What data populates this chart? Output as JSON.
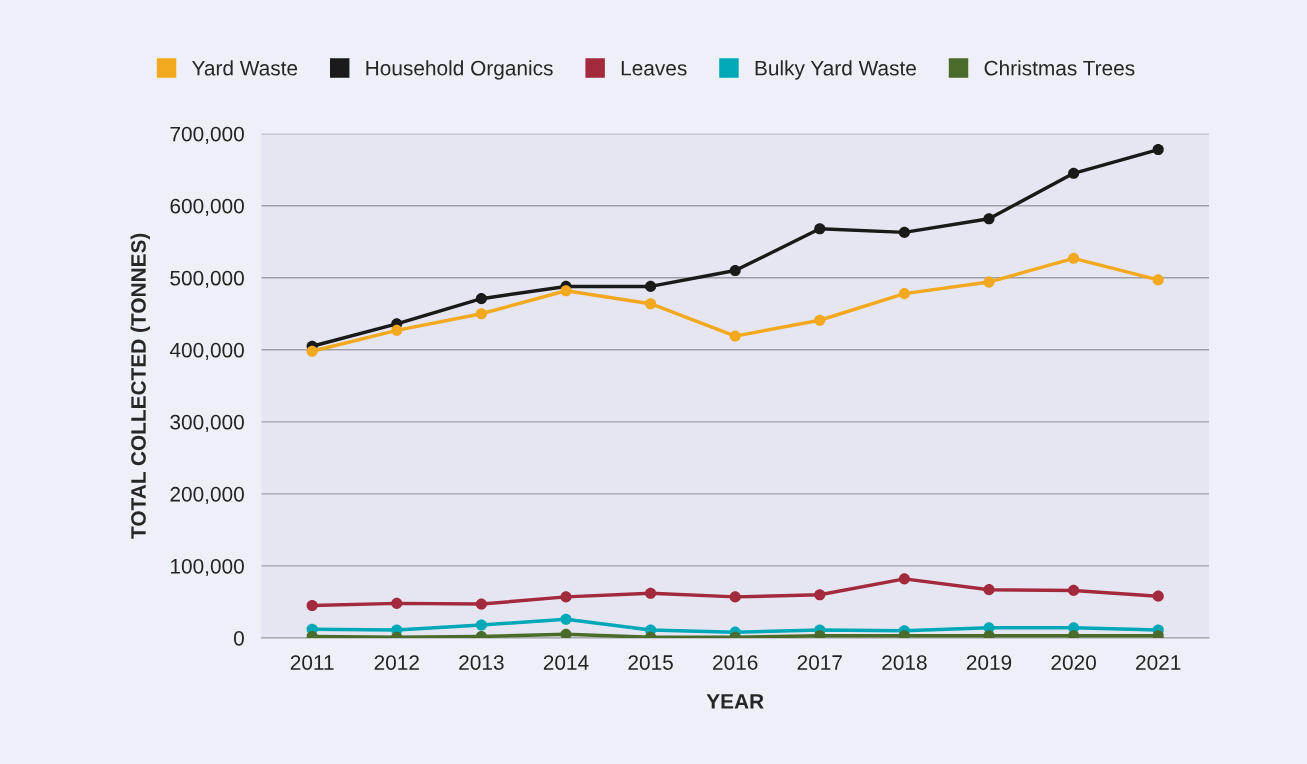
{
  "chart_data": {
    "type": "line",
    "xlabel": "YEAR",
    "ylabel": "TOTAL COLLECTED (TONNES)",
    "categories": [
      "2011",
      "2012",
      "2013",
      "2014",
      "2015",
      "2016",
      "2017",
      "2018",
      "2019",
      "2020",
      "2021"
    ],
    "series": [
      {
        "name": "Yard Waste",
        "color": "#f2a91f",
        "values": [
          398000,
          427000,
          450000,
          482000,
          464000,
          419000,
          441000,
          478000,
          494000,
          527000,
          497000
        ]
      },
      {
        "name": "Household Organics",
        "color": "#1a1a1a",
        "values": [
          405000,
          436000,
          471000,
          488000,
          488000,
          510000,
          568000,
          563000,
          582000,
          645000,
          678000
        ]
      },
      {
        "name": "Leaves",
        "color": "#a32a3c",
        "values": [
          45000,
          48000,
          47000,
          57000,
          62000,
          57000,
          60000,
          82000,
          67000,
          66000,
          58000
        ]
      },
      {
        "name": "Bulky Yard Waste",
        "color": "#00a8b8",
        "values": [
          12000,
          11000,
          18000,
          26000,
          11000,
          8000,
          11000,
          10000,
          14000,
          14000,
          11000
        ]
      },
      {
        "name": "Christmas Trees",
        "color": "#4a6b2a",
        "values": [
          2000,
          1000,
          2000,
          5000,
          1000,
          1000,
          3000,
          3000,
          3000,
          3000,
          3000
        ]
      }
    ],
    "ylim": [
      0,
      700000
    ],
    "yticks": [
      {
        "value": 0,
        "label": "0"
      },
      {
        "value": 100000,
        "label": "100,000"
      },
      {
        "value": 200000,
        "label": "200,000"
      },
      {
        "value": 300000,
        "label": "300,000"
      },
      {
        "value": 400000,
        "label": "400,000"
      },
      {
        "value": 500000,
        "label": "500,000"
      },
      {
        "value": 600000,
        "label": "600,000"
      },
      {
        "value": 700000,
        "label": "700,000"
      }
    ],
    "grid": "y",
    "legend": "top",
    "marker": "circle",
    "line_style": "solid"
  }
}
